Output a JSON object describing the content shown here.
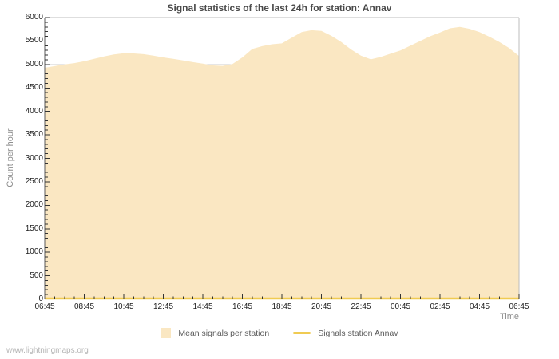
{
  "page": {
    "watermark": "www.lightningmaps.org"
  },
  "chart_data": {
    "type": "area",
    "title": "Signal statistics of the last 24h for station: Annav",
    "xlabel": "Time",
    "ylabel": "Count per hour",
    "ylim": [
      0,
      6000
    ],
    "y_major_step": 500,
    "y_minor_step": 100,
    "y_tick_labels": [
      "0",
      "500",
      "1000",
      "1500",
      "2000",
      "2500",
      "3000",
      "3500",
      "4000",
      "4500",
      "5000",
      "5500",
      "6000"
    ],
    "x_range_hours": 24,
    "x_major_step_hours": 2,
    "x_minor_step_hours": 0.5,
    "x_tick_labels": [
      "06:45",
      "08:45",
      "10:45",
      "12:45",
      "14:45",
      "16:45",
      "18:45",
      "20:45",
      "22:45",
      "00:45",
      "02:45",
      "04:45",
      "06:45"
    ],
    "grid": "horizontal-major",
    "legend_position": "bottom-center",
    "colors": {
      "area_fill": "#fae7c2",
      "station_line": "#f0cb52",
      "grid": "#cdcdcd",
      "border_light": "#bcbcbc",
      "border_dark": "#5a5a5a",
      "tick": "#333333"
    },
    "series": [
      {
        "name": "Mean signals per station",
        "type": "area",
        "color": "#fae7c2",
        "interval_minutes": 30,
        "start_time": "06:45",
        "values": [
          4930,
          4965,
          5000,
          5030,
          5070,
          5120,
          5170,
          5215,
          5240,
          5235,
          5220,
          5190,
          5150,
          5120,
          5085,
          5050,
          5020,
          4980,
          4970,
          5010,
          5150,
          5330,
          5390,
          5430,
          5450,
          5570,
          5690,
          5730,
          5715,
          5610,
          5480,
          5320,
          5190,
          5110,
          5160,
          5230,
          5300,
          5400,
          5500,
          5600,
          5680,
          5770,
          5800,
          5760,
          5690,
          5590,
          5480,
          5350,
          5180
        ]
      },
      {
        "name": "Signals station Annav",
        "type": "line",
        "color": "#f0cb52",
        "constant_value": 0
      }
    ]
  }
}
